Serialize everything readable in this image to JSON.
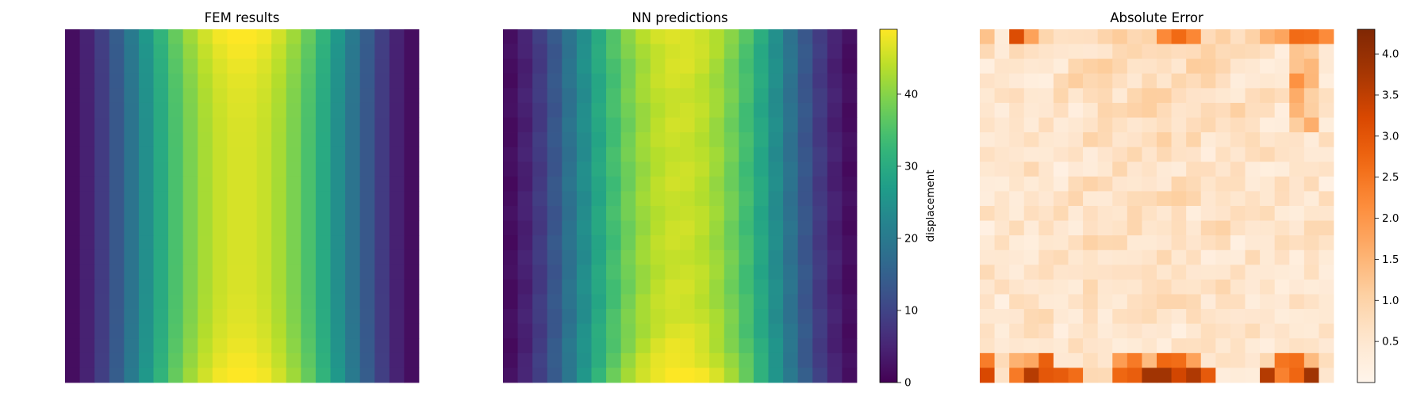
{
  "chart_data": [
    {
      "type": "heatmap",
      "title": "FEM results",
      "grid": {
        "rows": 24,
        "cols": 24
      },
      "colormap": "viridis",
      "vmin": 0,
      "vmax": 49,
      "pattern": "column profile peaking at the center columns, slightly higher near the top and bottom edges",
      "colorbar": null
    },
    {
      "type": "heatmap",
      "title": "NN predictions",
      "grid": {
        "rows": 24,
        "cols": 24
      },
      "colormap": "viridis",
      "vmin": 0,
      "vmax": 49,
      "pattern": "column profile peaking at the center columns, highest near the bottom edge",
      "colorbar": {
        "label": "displacement",
        "ticks": [
          "0",
          "10",
          "20",
          "30",
          "40"
        ]
      }
    },
    {
      "type": "heatmap",
      "title": "Absolute Error",
      "grid": {
        "rows": 24,
        "cols": 24
      },
      "colormap": "Oranges",
      "vmin": 0,
      "vmax": 4.3,
      "pattern": "mostly low error; larger errors along the bottom row and top row, especially right side",
      "colorbar": {
        "label": "",
        "ticks": [
          "0.5",
          "1.0",
          "1.5",
          "2.0",
          "2.5",
          "3.0",
          "3.5",
          "4.0"
        ]
      }
    }
  ]
}
